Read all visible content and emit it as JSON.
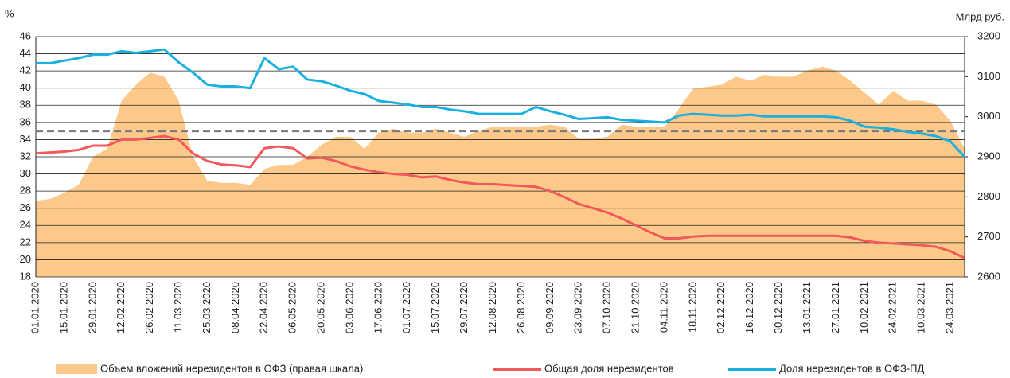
{
  "chart_data": {
    "type": "combo",
    "y_axis_label": "%",
    "y2_axis_label": "Млрд руб.",
    "categories": [
      "01.01.2020",
      null,
      "15.01.2020",
      null,
      "29.01.2020",
      null,
      "12.02.2020",
      null,
      "26.02.2020",
      null,
      "11.03.2020",
      null,
      "25.03.2020",
      null,
      "08.04.2020",
      null,
      "22.04.2020",
      null,
      "06.05.2020",
      null,
      "20.05.2020",
      null,
      "03.06.2020",
      null,
      "17.06.2020",
      null,
      "01.07.2020",
      null,
      "15.07.2020",
      null,
      "29.07.2020",
      null,
      "12.08.2020",
      null,
      "26.08.2020",
      null,
      "09.09.2020",
      null,
      "23.09.2020",
      null,
      "07.10.2020",
      null,
      "21.10.2020",
      null,
      "04.11.2020",
      null,
      "18.11.2020",
      null,
      "02.12.2020",
      null,
      "16.12.2020",
      null,
      "30.12.2020",
      null,
      "13.01.2021",
      null,
      "27.01.2021",
      null,
      "10.02.2021",
      null,
      "24.02.2021",
      null,
      "10.03.2021",
      null,
      "24.03.2021",
      null
    ],
    "series": [
      {
        "name": "Объем вложений нерезидентов в ОФЗ (правая шкала)",
        "kind": "area",
        "axis": "y2",
        "color": "#fdc98a",
        "values": [
          2790,
          2795,
          2810,
          2830,
          2900,
          2920,
          3040,
          3080,
          3110,
          3100,
          3040,
          2900,
          2840,
          2835,
          2835,
          2830,
          2870,
          2880,
          2880,
          2900,
          2930,
          2950,
          2950,
          2920,
          2960,
          2970,
          2960,
          2960,
          2970,
          2960,
          2950,
          2965,
          2975,
          2975,
          2975,
          2975,
          2980,
          2975,
          2945,
          2945,
          2950,
          2980,
          2975,
          2975,
          2975,
          3020,
          3070,
          3075,
          3080,
          3100,
          3090,
          3105,
          3100,
          3100,
          3115,
          3125,
          3115,
          3090,
          3060,
          3030,
          3065,
          3040,
          3040,
          3030,
          2990,
          2920
        ]
      },
      {
        "name": "Общая доля нерезидентов",
        "kind": "line",
        "color": "#f05a5a",
        "values": [
          32.4,
          32.5,
          32.6,
          32.8,
          33.3,
          33.3,
          34.0,
          34.0,
          34.2,
          34.4,
          34.0,
          32.4,
          31.5,
          31.1,
          31.0,
          30.8,
          33.0,
          33.2,
          33.0,
          31.8,
          31.9,
          31.5,
          30.9,
          30.5,
          30.2,
          30.0,
          29.9,
          29.6,
          29.7,
          29.3,
          29.0,
          28.8,
          28.8,
          28.7,
          28.6,
          28.5,
          28.0,
          27.3,
          26.5,
          26.0,
          25.5,
          24.8,
          24.0,
          23.2,
          22.5,
          22.5,
          22.7,
          22.8,
          22.8,
          22.8,
          22.8,
          22.8,
          22.8,
          22.8,
          22.8,
          22.8,
          22.8,
          22.6,
          22.2,
          22.0,
          21.9,
          21.8,
          21.7,
          21.5,
          21.0,
          20.2
        ]
      },
      {
        "name": "Доля нерезидентов в ОФЗ-ПД",
        "kind": "line",
        "color": "#1ab0e0",
        "values": [
          42.9,
          42.9,
          43.2,
          43.5,
          43.9,
          43.9,
          44.3,
          44.1,
          44.3,
          44.5,
          43.0,
          41.8,
          40.4,
          40.2,
          40.2,
          40.0,
          43.5,
          42.2,
          42.5,
          41.0,
          40.8,
          40.3,
          39.7,
          39.3,
          38.5,
          38.3,
          38.1,
          37.8,
          37.8,
          37.5,
          37.3,
          37.0,
          37.0,
          37.0,
          37.0,
          37.8,
          37.3,
          36.9,
          36.4,
          36.5,
          36.6,
          36.3,
          36.2,
          36.1,
          36.0,
          36.8,
          37.0,
          36.9,
          36.8,
          36.8,
          36.9,
          36.7,
          36.7,
          36.7,
          36.7,
          36.7,
          36.6,
          36.2,
          35.5,
          35.4,
          35.2,
          34.9,
          34.7,
          34.4,
          33.8,
          32.0
        ]
      }
    ],
    "reference_line": {
      "value": 35,
      "color": "#777777",
      "dashed": true
    },
    "ylim": [
      18,
      46
    ],
    "yticks": [
      18,
      20,
      22,
      24,
      26,
      28,
      30,
      32,
      34,
      36,
      38,
      40,
      42,
      44,
      46
    ],
    "y2lim": [
      2600,
      3200
    ],
    "y2ticks": [
      2600,
      2700,
      2800,
      2900,
      3000,
      3100,
      3200
    ],
    "grid": true,
    "legend": "bottom"
  }
}
